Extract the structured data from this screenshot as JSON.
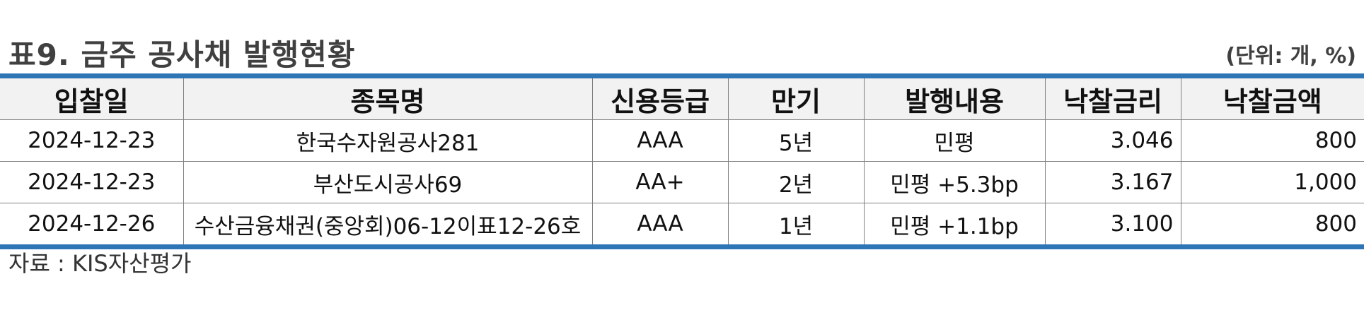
{
  "title": "표9. 금주 공사채 발행현황",
  "unit": "(단위: 개, %)",
  "table": {
    "headers": [
      "입찰일",
      "종목명",
      "신용등급",
      "만기",
      "발행내용",
      "낙찰금리",
      "낙찰금액"
    ],
    "rows": [
      [
        "2024-12-23",
        "한국수자원공사281",
        "AAA",
        "5년",
        "민평",
        "3.046",
        "800"
      ],
      [
        "2024-12-23",
        "부산도시공사69",
        "AA+",
        "2년",
        "민평 +5.3bp",
        "3.167",
        "1,000"
      ],
      [
        "2024-12-26",
        "수산금융채권(중앙회)06-12이표12-26호",
        "AAA",
        "1년",
        "민평 +1.1bp",
        "3.100",
        "800"
      ]
    ]
  },
  "source": "자료 : KIS자산평가",
  "colors": {
    "accent_rule": "#2e75b6",
    "header_bg": "#f2f2f2",
    "title_text": "#404040"
  }
}
